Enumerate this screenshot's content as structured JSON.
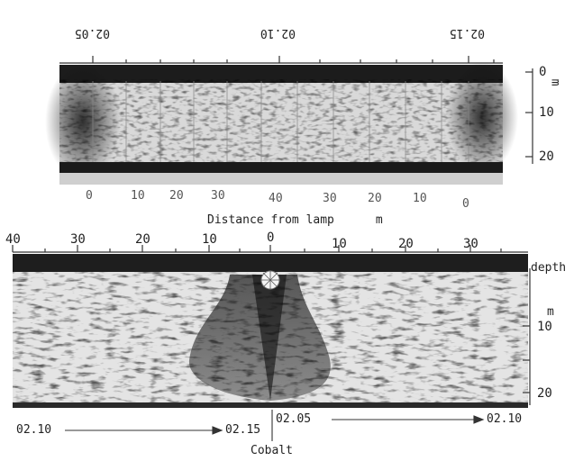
{
  "top_panel": {
    "time_labels": [
      "02.05",
      "02.10",
      "02.15"
    ],
    "depth_ticks": [
      "0",
      "10",
      "20"
    ],
    "depth_unit": "m",
    "distance_labels": [
      "0",
      "10",
      "20",
      "30",
      "40",
      "30",
      "20",
      "10",
      "0"
    ]
  },
  "caption": {
    "text": "Distance from lamp",
    "unit": "m"
  },
  "bottom_panel": {
    "distance_ticks": [
      "40",
      "30",
      "20",
      "10",
      "0",
      "10",
      "20",
      "30"
    ],
    "depth_title": "depth",
    "depth_unit": "m",
    "depth_ticks": [
      "10",
      "20"
    ],
    "time_left_start": "02.10",
    "time_left_end": "02.15",
    "time_right_start": "02.05",
    "time_right_end": "02.10",
    "source_label": "Cobalt"
  }
}
